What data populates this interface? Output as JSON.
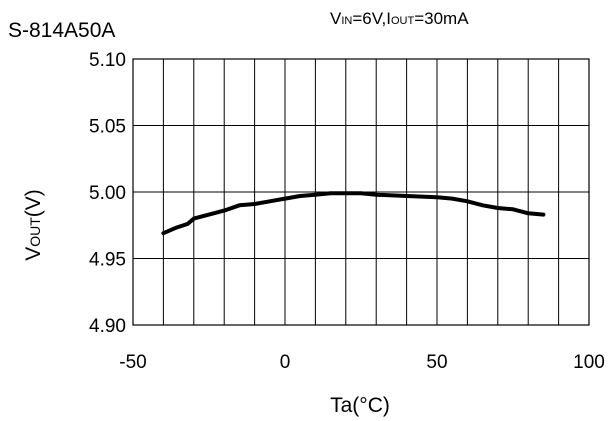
{
  "chart_data": {
    "type": "line",
    "title": "S-814A50A",
    "condition": {
      "vin_main": "V",
      "vin_sub": "IN",
      "vin_value": "=6V,",
      "iout_main": "I",
      "iout_sub": "OUT",
      "iout_value": "=30mA"
    },
    "xlabel": "Ta(°C)",
    "ylabel": {
      "main": "V",
      "sub": "OUT",
      "tail": "(V)"
    },
    "xlim": [
      -50,
      100
    ],
    "ylim": [
      4.9,
      5.1
    ],
    "x_ticks": [
      -50,
      0,
      50,
      100
    ],
    "x_tick_labels": [
      "-50",
      "0",
      "50",
      "100"
    ],
    "y_ticks": [
      4.9,
      4.95,
      5.0,
      5.05,
      5.1
    ],
    "y_tick_labels": [
      "4.90",
      "4.95",
      "5.00",
      "5.05",
      "5.10"
    ],
    "x_grid_step": 10,
    "y_grid_step": 0.05,
    "grid": true,
    "series": [
      {
        "x": [
          -40,
          -36,
          -32,
          -30,
          -25,
          -20,
          -15,
          -10,
          -5,
          0,
          5,
          10,
          15,
          20,
          25,
          30,
          40,
          50,
          55,
          60,
          65,
          70,
          75,
          80,
          85
        ],
        "y": [
          4.969,
          4.973,
          4.976,
          4.98,
          4.983,
          4.986,
          4.99,
          4.991,
          4.993,
          4.995,
          4.997,
          4.998,
          4.999,
          4.999,
          4.999,
          4.998,
          4.997,
          4.996,
          4.995,
          4.993,
          4.99,
          4.988,
          4.987,
          4.984,
          4.983
        ]
      }
    ]
  }
}
